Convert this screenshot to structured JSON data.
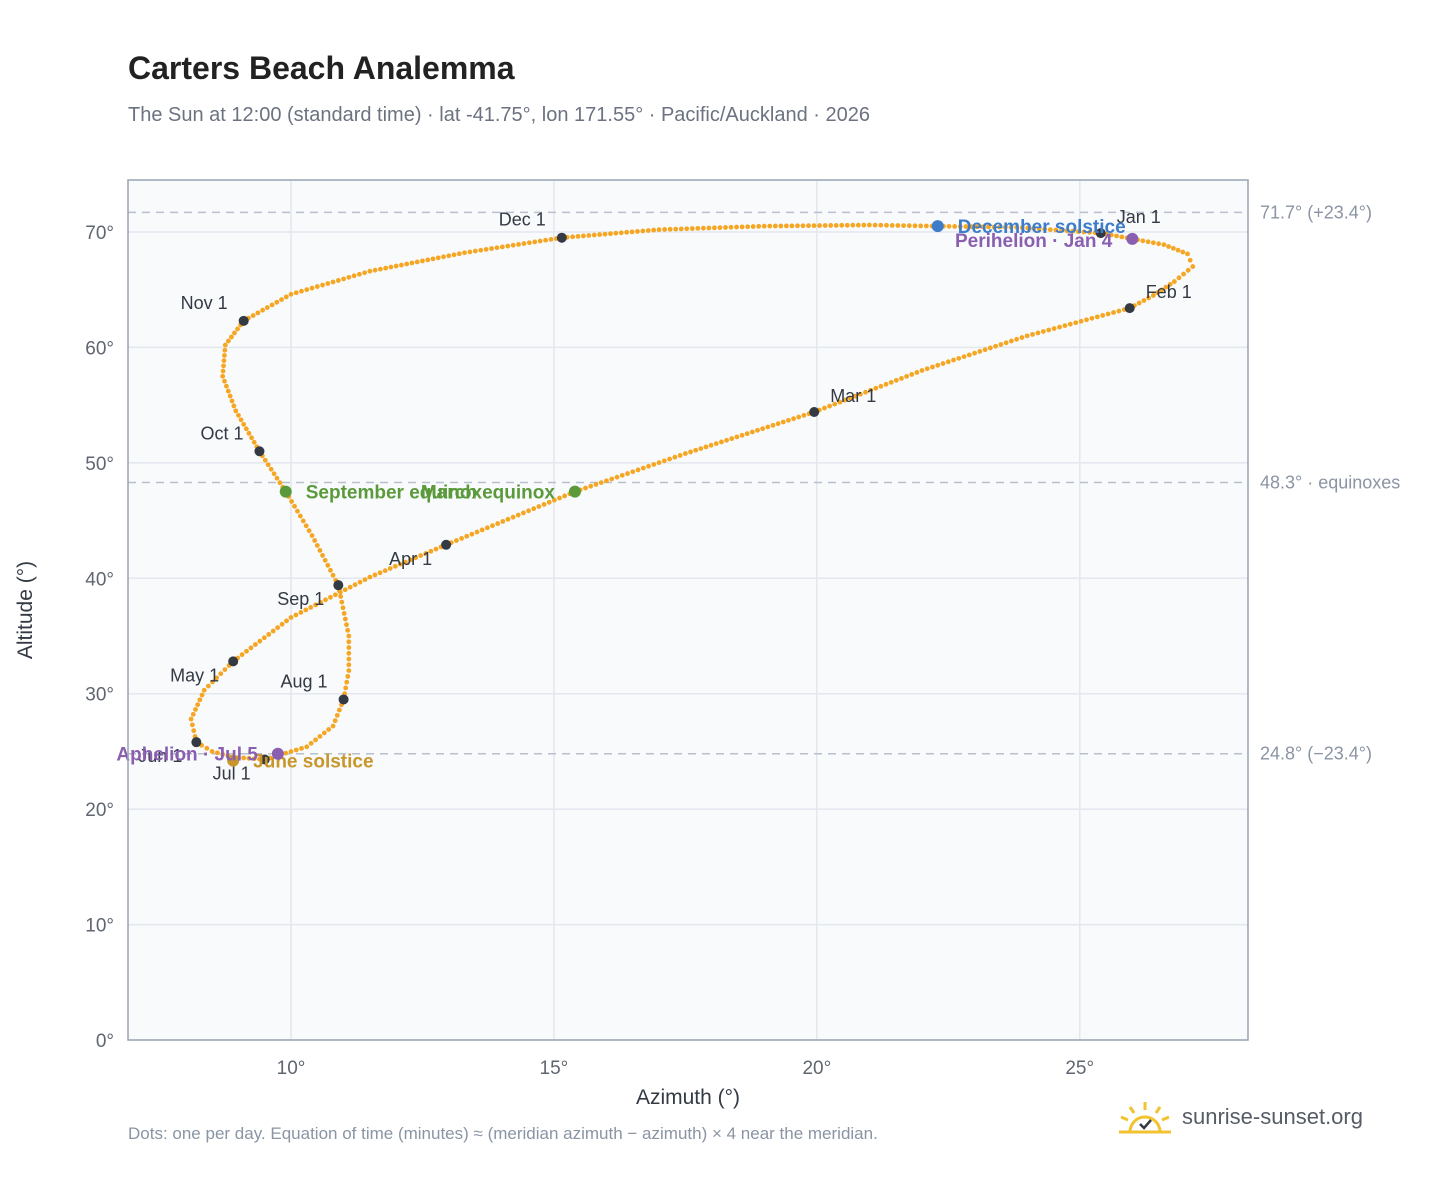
{
  "title": "Carters Beach Analemma",
  "subtitle": "The Sun at 12:00 (standard time) · lat -41.75°, lon 171.55° · Pacific/Auckland · 2026",
  "footnote": "Dots: one per day. Equation of time (minutes) ≈ (meridian azimuth − azimuth) × 4 near the meridian.",
  "brand": "sunrise-sunset.org",
  "colors": {
    "curve": "#f5a623",
    "month_marker": "#333a44",
    "solstice_june": "#c8962a",
    "solstice_december": "#3d7cc9",
    "equinox": "#5b9a3a",
    "apsis": "#8a5fb0",
    "grid": "#e3e7ee",
    "plot_bg": "#f8fafc",
    "frame": "#9aa3b3",
    "brand_sun": "#f2c230",
    "brand_check": "#333a44"
  },
  "chart_data": {
    "type": "scatter",
    "xlabel": "Azimuth (°)",
    "ylabel": "Altitude (°)",
    "xlim": [
      6.9,
      28.2
    ],
    "ylim": [
      0,
      74.5
    ],
    "xticks": [
      10,
      15,
      20,
      25
    ],
    "xtick_labels": [
      "10°",
      "15°",
      "20°",
      "25°"
    ],
    "yticks": [
      0,
      10,
      20,
      30,
      40,
      50,
      60,
      70
    ],
    "ytick_labels": [
      "0°",
      "10°",
      "20°",
      "30°",
      "40°",
      "50°",
      "60°",
      "70°"
    ],
    "grid": true,
    "reference_lines": [
      {
        "y": 71.7,
        "label": "71.7° (+23.4°)"
      },
      {
        "y": 48.3,
        "label": "48.3° · equinoxes"
      },
      {
        "y": 24.8,
        "label": "24.8° (−23.4°)"
      }
    ],
    "month_markers": [
      {
        "label": "Jan 1",
        "x": 25.4,
        "y": 69.9,
        "pos": "above-right"
      },
      {
        "label": "Feb 1",
        "x": 25.95,
        "y": 63.4,
        "pos": "above-right"
      },
      {
        "label": "Mar 1",
        "x": 19.95,
        "y": 54.4,
        "pos": "above-right"
      },
      {
        "label": "Apr 1",
        "x": 12.95,
        "y": 42.9,
        "pos": "below-left"
      },
      {
        "label": "May 1",
        "x": 8.9,
        "y": 32.8,
        "pos": "below-left"
      },
      {
        "label": "Jun 1",
        "x": 8.2,
        "y": 25.8,
        "pos": "below-left"
      },
      {
        "label": "Jul 1",
        "x": 9.5,
        "y": 24.3,
        "pos": "below-left"
      },
      {
        "label": "Aug 1",
        "x": 11.0,
        "y": 29.5,
        "pos": "above-left"
      },
      {
        "label": "Sep 1",
        "x": 10.9,
        "y": 39.4,
        "pos": "below-left"
      },
      {
        "label": "Oct 1",
        "x": 9.4,
        "y": 51.0,
        "pos": "above-left"
      },
      {
        "label": "Nov 1",
        "x": 9.1,
        "y": 62.3,
        "pos": "above-left"
      },
      {
        "label": "Dec 1",
        "x": 15.15,
        "y": 69.5,
        "pos": "above-left"
      }
    ],
    "events": [
      {
        "label": "December solstice",
        "x": 22.3,
        "y": 70.5,
        "color_key": "solstice_december",
        "pos": "right"
      },
      {
        "label": "March equinox",
        "x": 15.4,
        "y": 47.5,
        "color_key": "equinox",
        "pos": "left"
      },
      {
        "label": "June solstice",
        "x": 8.9,
        "y": 24.2,
        "color_key": "solstice_june",
        "pos": "right"
      },
      {
        "label": "September equinox",
        "x": 9.9,
        "y": 47.5,
        "color_key": "equinox",
        "pos": "right"
      },
      {
        "label": "Perihelion · Jan 4",
        "x": 26.0,
        "y": 69.4,
        "color_key": "apsis",
        "pos": "below-left"
      },
      {
        "label": "Aphelion · Jul 5",
        "x": 9.75,
        "y": 24.8,
        "color_key": "apsis",
        "pos": "left"
      }
    ],
    "series": [
      {
        "points": [
          [
            25.4,
            69.9
          ],
          [
            26.0,
            69.4
          ],
          [
            26.6,
            68.9
          ],
          [
            27.05,
            68.1
          ],
          [
            27.15,
            67.0
          ],
          [
            26.8,
            65.7
          ],
          [
            26.4,
            64.5
          ],
          [
            25.95,
            63.4
          ],
          [
            24.0,
            61.0
          ],
          [
            22.0,
            58.0
          ],
          [
            19.95,
            54.4
          ],
          [
            17.5,
            50.8
          ],
          [
            15.4,
            47.5
          ],
          [
            12.95,
            42.9
          ],
          [
            11.5,
            40.1
          ],
          [
            10.0,
            36.6
          ],
          [
            8.9,
            32.8
          ],
          [
            8.35,
            30.3
          ],
          [
            8.1,
            27.8
          ],
          [
            8.2,
            25.8
          ],
          [
            8.5,
            25.0
          ],
          [
            8.9,
            24.5
          ],
          [
            9.5,
            24.3
          ],
          [
            10.3,
            25.4
          ],
          [
            10.8,
            27.2
          ],
          [
            11.0,
            29.5
          ],
          [
            11.1,
            32.0
          ],
          [
            11.1,
            35.0
          ],
          [
            10.9,
            39.4
          ],
          [
            10.4,
            43.7
          ],
          [
            9.9,
            47.5
          ],
          [
            9.4,
            51.0
          ],
          [
            8.95,
            54.5
          ],
          [
            8.7,
            57.5
          ],
          [
            8.75,
            60.2
          ],
          [
            9.1,
            62.3
          ],
          [
            10.0,
            64.6
          ],
          [
            11.5,
            66.6
          ],
          [
            13.3,
            68.2
          ],
          [
            15.15,
            69.5
          ],
          [
            17.0,
            70.2
          ],
          [
            19.0,
            70.5
          ],
          [
            21.0,
            70.6
          ],
          [
            22.3,
            70.5
          ],
          [
            23.8,
            70.4
          ],
          [
            25.4,
            69.9
          ]
        ]
      }
    ]
  }
}
